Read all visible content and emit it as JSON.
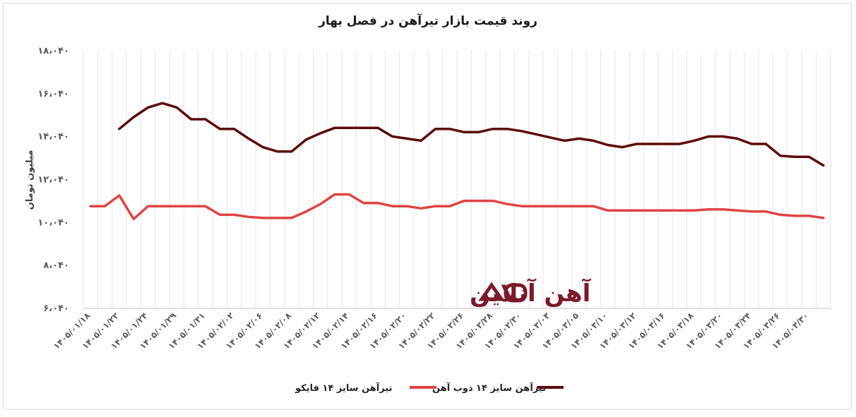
{
  "chart_data": {
    "type": "line",
    "title": "روند قیمت بازار تیرآهن در فصل بهار",
    "ylabel": "میلیون تومان",
    "xlabel": "",
    "ylim": [
      6040,
      18040
    ],
    "yticks": [
      "۶،۰۴۰",
      "۸،۰۴۰",
      "۱۰،۰۴۰",
      "۱۲،۰۴۰",
      "۱۴،۰۴۰",
      "۱۶،۰۴۰",
      "۱۸،۰۴۰"
    ],
    "ytick_values": [
      6040,
      8040,
      10040,
      12040,
      14040,
      16040,
      18040
    ],
    "x_tick_labels": [
      "۱۴۰۵/۰۱/۱۸",
      "۱۴۰۵/۰۱/۲۲",
      "۱۴۰۵/۰۱/۲۴",
      "۱۴۰۵/۰۱/۲۹",
      "۱۴۰۵/۰۱/۳۱",
      "۱۴۰۵/۰۲/۰۲",
      "۱۴۰۵/۰۲/۰۶",
      "۱۴۰۵/۰۲/۰۸",
      "۱۴۰۵/۰۲/۱۲",
      "۱۴۰۵/۰۲/۱۴",
      "۱۴۰۵/۰۲/۱۶",
      "۱۴۰۵/۰۲/۲۰",
      "۱۴۰۵/۰۲/۲۲",
      "۱۴۰۵/۰۲/۲۶",
      "۱۴۰۵/۰۲/۲۸",
      "۱۴۰۵/۰۲/۳۰",
      "۱۴۰۵/۰۳/۰۳",
      "۱۴۰۵/۰۳/۰۵",
      "۱۴۰۵/۰۳/۱۰",
      "۱۴۰۵/۰۳/۱۲",
      "۱۴۰۵/۰۳/۱۶",
      "۱۴۰۵/۰۳/۱۸",
      "۱۴۰۵/۰۳/۲۰",
      "۱۴۰۵/۰۳/۲۴",
      "۱۴۰۵/۰۳/۲۶",
      "۱۴۰۵/۰۳/۳۰"
    ],
    "num_points": 52,
    "grid": true,
    "legend_position": "bottom",
    "series": [
      {
        "name": "تیرآهن سایز ۱۴ ذوب آهن",
        "color": "#5c0a0a",
        "values": [
          null,
          null,
          14400,
          14950,
          15400,
          15600,
          15400,
          14850,
          14850,
          14400,
          14400,
          13950,
          13550,
          13350,
          13350,
          13900,
          14200,
          14450,
          14450,
          14450,
          14450,
          14050,
          13950,
          13850,
          14400,
          14400,
          14250,
          14250,
          14400,
          14400,
          14300,
          14150,
          14000,
          13850,
          13950,
          13850,
          13650,
          13550,
          13700,
          13700,
          13700,
          13700,
          13850,
          14050,
          14050,
          13950,
          13700,
          13700,
          13150,
          13100,
          13100,
          12700
        ]
      },
      {
        "name": "تیرآهن سایز ۱۴ فایکو",
        "color": "#e04343",
        "values": [
          10800,
          10800,
          11300,
          10200,
          10800,
          10800,
          10800,
          10800,
          10800,
          10400,
          10400,
          10300,
          10250,
          10250,
          10250,
          10550,
          10900,
          11350,
          11350,
          10950,
          10950,
          10800,
          10800,
          10700,
          10800,
          10800,
          11050,
          11050,
          11050,
          10900,
          10800,
          10800,
          10800,
          10800,
          10800,
          10800,
          10600,
          10600,
          10600,
          10600,
          10600,
          10600,
          10600,
          10650,
          10650,
          10600,
          10550,
          10550,
          10400,
          10350,
          10350,
          10250
        ]
      }
    ]
  },
  "brand": {
    "logo_text": "آهن آنلاین",
    "logo_mark": "AO"
  }
}
